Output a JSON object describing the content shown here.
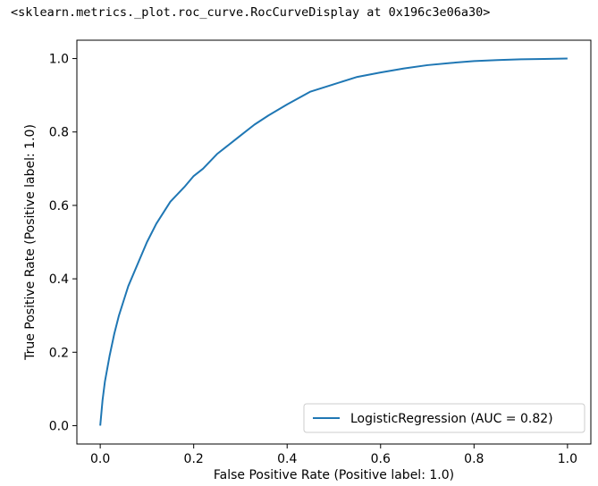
{
  "output": {
    "repr_text": "<sklearn.metrics._plot.roc_curve.RocCurveDisplay at 0x196c3e06a30>"
  },
  "chart_data": {
    "type": "line",
    "title": "",
    "xlabel": "False Positive Rate (Positive label: 1.0)",
    "ylabel": "True Positive Rate (Positive label: 1.0)",
    "xlim": [
      -0.05,
      1.05
    ],
    "ylim": [
      -0.05,
      1.05
    ],
    "xticks": [
      0.0,
      0.2,
      0.4,
      0.6,
      0.8,
      1.0
    ],
    "yticks": [
      0.0,
      0.2,
      0.4,
      0.6,
      0.8,
      1.0
    ],
    "xtick_labels": [
      "0.0",
      "0.2",
      "0.4",
      "0.6",
      "0.8",
      "1.0"
    ],
    "ytick_labels": [
      "0.0",
      "0.2",
      "0.4",
      "0.6",
      "0.8",
      "1.0"
    ],
    "grid": false,
    "legend_position": "lower-right",
    "series": [
      {
        "name": "LogisticRegression (AUC = 0.82)",
        "color": "#1f77b4",
        "x": [
          0.0,
          0.005,
          0.01,
          0.02,
          0.03,
          0.04,
          0.05,
          0.06,
          0.08,
          0.1,
          0.12,
          0.15,
          0.18,
          0.2,
          0.22,
          0.25,
          0.28,
          0.3,
          0.33,
          0.36,
          0.4,
          0.45,
          0.5,
          0.55,
          0.6,
          0.65,
          0.7,
          0.75,
          0.8,
          0.85,
          0.9,
          0.95,
          1.0
        ],
        "y": [
          0.0,
          0.07,
          0.12,
          0.19,
          0.25,
          0.3,
          0.34,
          0.38,
          0.44,
          0.5,
          0.55,
          0.61,
          0.65,
          0.68,
          0.7,
          0.74,
          0.77,
          0.79,
          0.82,
          0.845,
          0.875,
          0.91,
          0.93,
          0.95,
          0.962,
          0.973,
          0.982,
          0.988,
          0.993,
          0.996,
          0.998,
          0.999,
          1.0
        ]
      }
    ]
  }
}
